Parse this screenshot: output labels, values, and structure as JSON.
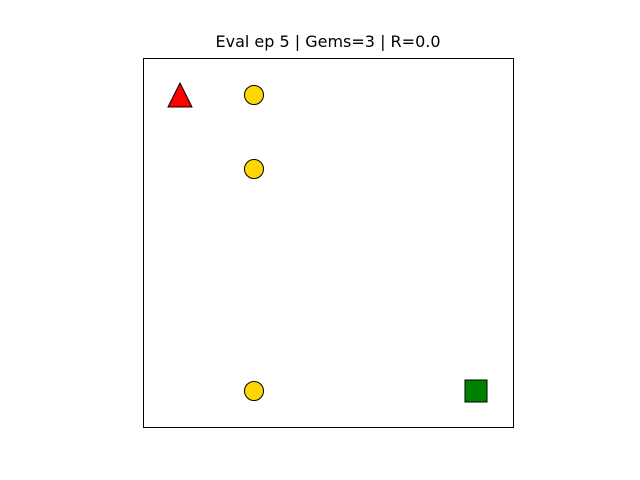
{
  "title": "Eval ep 5 | Gems=3 | R=0.0",
  "grid": {
    "size": 5,
    "background": "#ffffff",
    "border_color": "#000000"
  },
  "agent": {
    "icon": "triangle-agent-icon",
    "cell": [
      0,
      0
    ],
    "color": "#ff0000"
  },
  "gems": [
    {
      "icon": "gem-circle-icon",
      "cell": [
        1,
        0
      ],
      "color": "#ffd700"
    },
    {
      "icon": "gem-circle-icon",
      "cell": [
        1,
        1
      ],
      "color": "#ffd700"
    },
    {
      "icon": "gem-circle-icon",
      "cell": [
        1,
        4
      ],
      "color": "#ffd700"
    }
  ],
  "goal": {
    "icon": "goal-square-icon",
    "cell": [
      4,
      4
    ],
    "color": "#008000"
  }
}
